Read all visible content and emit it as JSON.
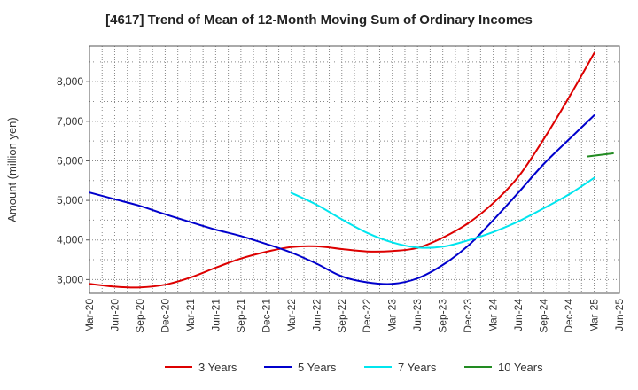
{
  "chart_data": {
    "type": "line",
    "title": "[4617]  Trend of Mean of 12-Month Moving Sum of Ordinary Incomes",
    "xlabel": "",
    "ylabel": "Amount (million yen)",
    "x_ticks": [
      "Mar-20",
      "Jun-20",
      "Sep-20",
      "Dec-20",
      "Mar-21",
      "Jun-21",
      "Sep-21",
      "Dec-21",
      "Mar-22",
      "Jun-22",
      "Sep-22",
      "Dec-22",
      "Mar-23",
      "Jun-23",
      "Sep-23",
      "Dec-23",
      "Mar-24",
      "Jun-24",
      "Sep-24",
      "Dec-24",
      "Mar-25",
      "Jun-25"
    ],
    "y_ticks": [
      3000,
      4000,
      5000,
      6000,
      7000,
      8000
    ],
    "y_tick_labels": [
      "3,000",
      "4,000",
      "5,000",
      "6,000",
      "7,000",
      "8,000"
    ],
    "ylim": [
      2650,
      8900
    ],
    "grid": true,
    "legend_position": "bottom",
    "series": [
      {
        "name": "3 Years",
        "color": "#dd0000",
        "start_index": 0,
        "values": [
          2890,
          2820,
          2800,
          2870,
          3050,
          3300,
          3530,
          3700,
          3820,
          3840,
          3770,
          3710,
          3720,
          3800,
          4060,
          4420,
          4930,
          5600,
          6550,
          7600,
          8720
        ]
      },
      {
        "name": "5 Years",
        "color": "#0000cc",
        "start_index": 0,
        "values": [
          5200,
          5030,
          4860,
          4650,
          4450,
          4260,
          4100,
          3900,
          3680,
          3400,
          3080,
          2930,
          2890,
          3030,
          3370,
          3850,
          4500,
          5200,
          5920,
          6540,
          7150
        ]
      },
      {
        "name": "7 Years",
        "color": "#00e5ee",
        "start_index": 8,
        "values": [
          5190,
          4890,
          4520,
          4180,
          3940,
          3810,
          3830,
          3990,
          4200,
          4470,
          4800,
          5150,
          5570
        ]
      },
      {
        "name": "10 Years",
        "color": "#228b22",
        "start_index": 19.75,
        "values": [
          6110,
          6190
        ]
      }
    ]
  }
}
